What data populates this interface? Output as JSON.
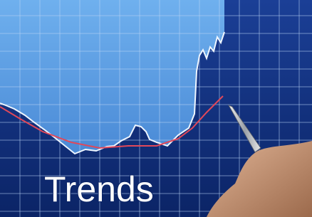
{
  "caption": "Trends"
}
